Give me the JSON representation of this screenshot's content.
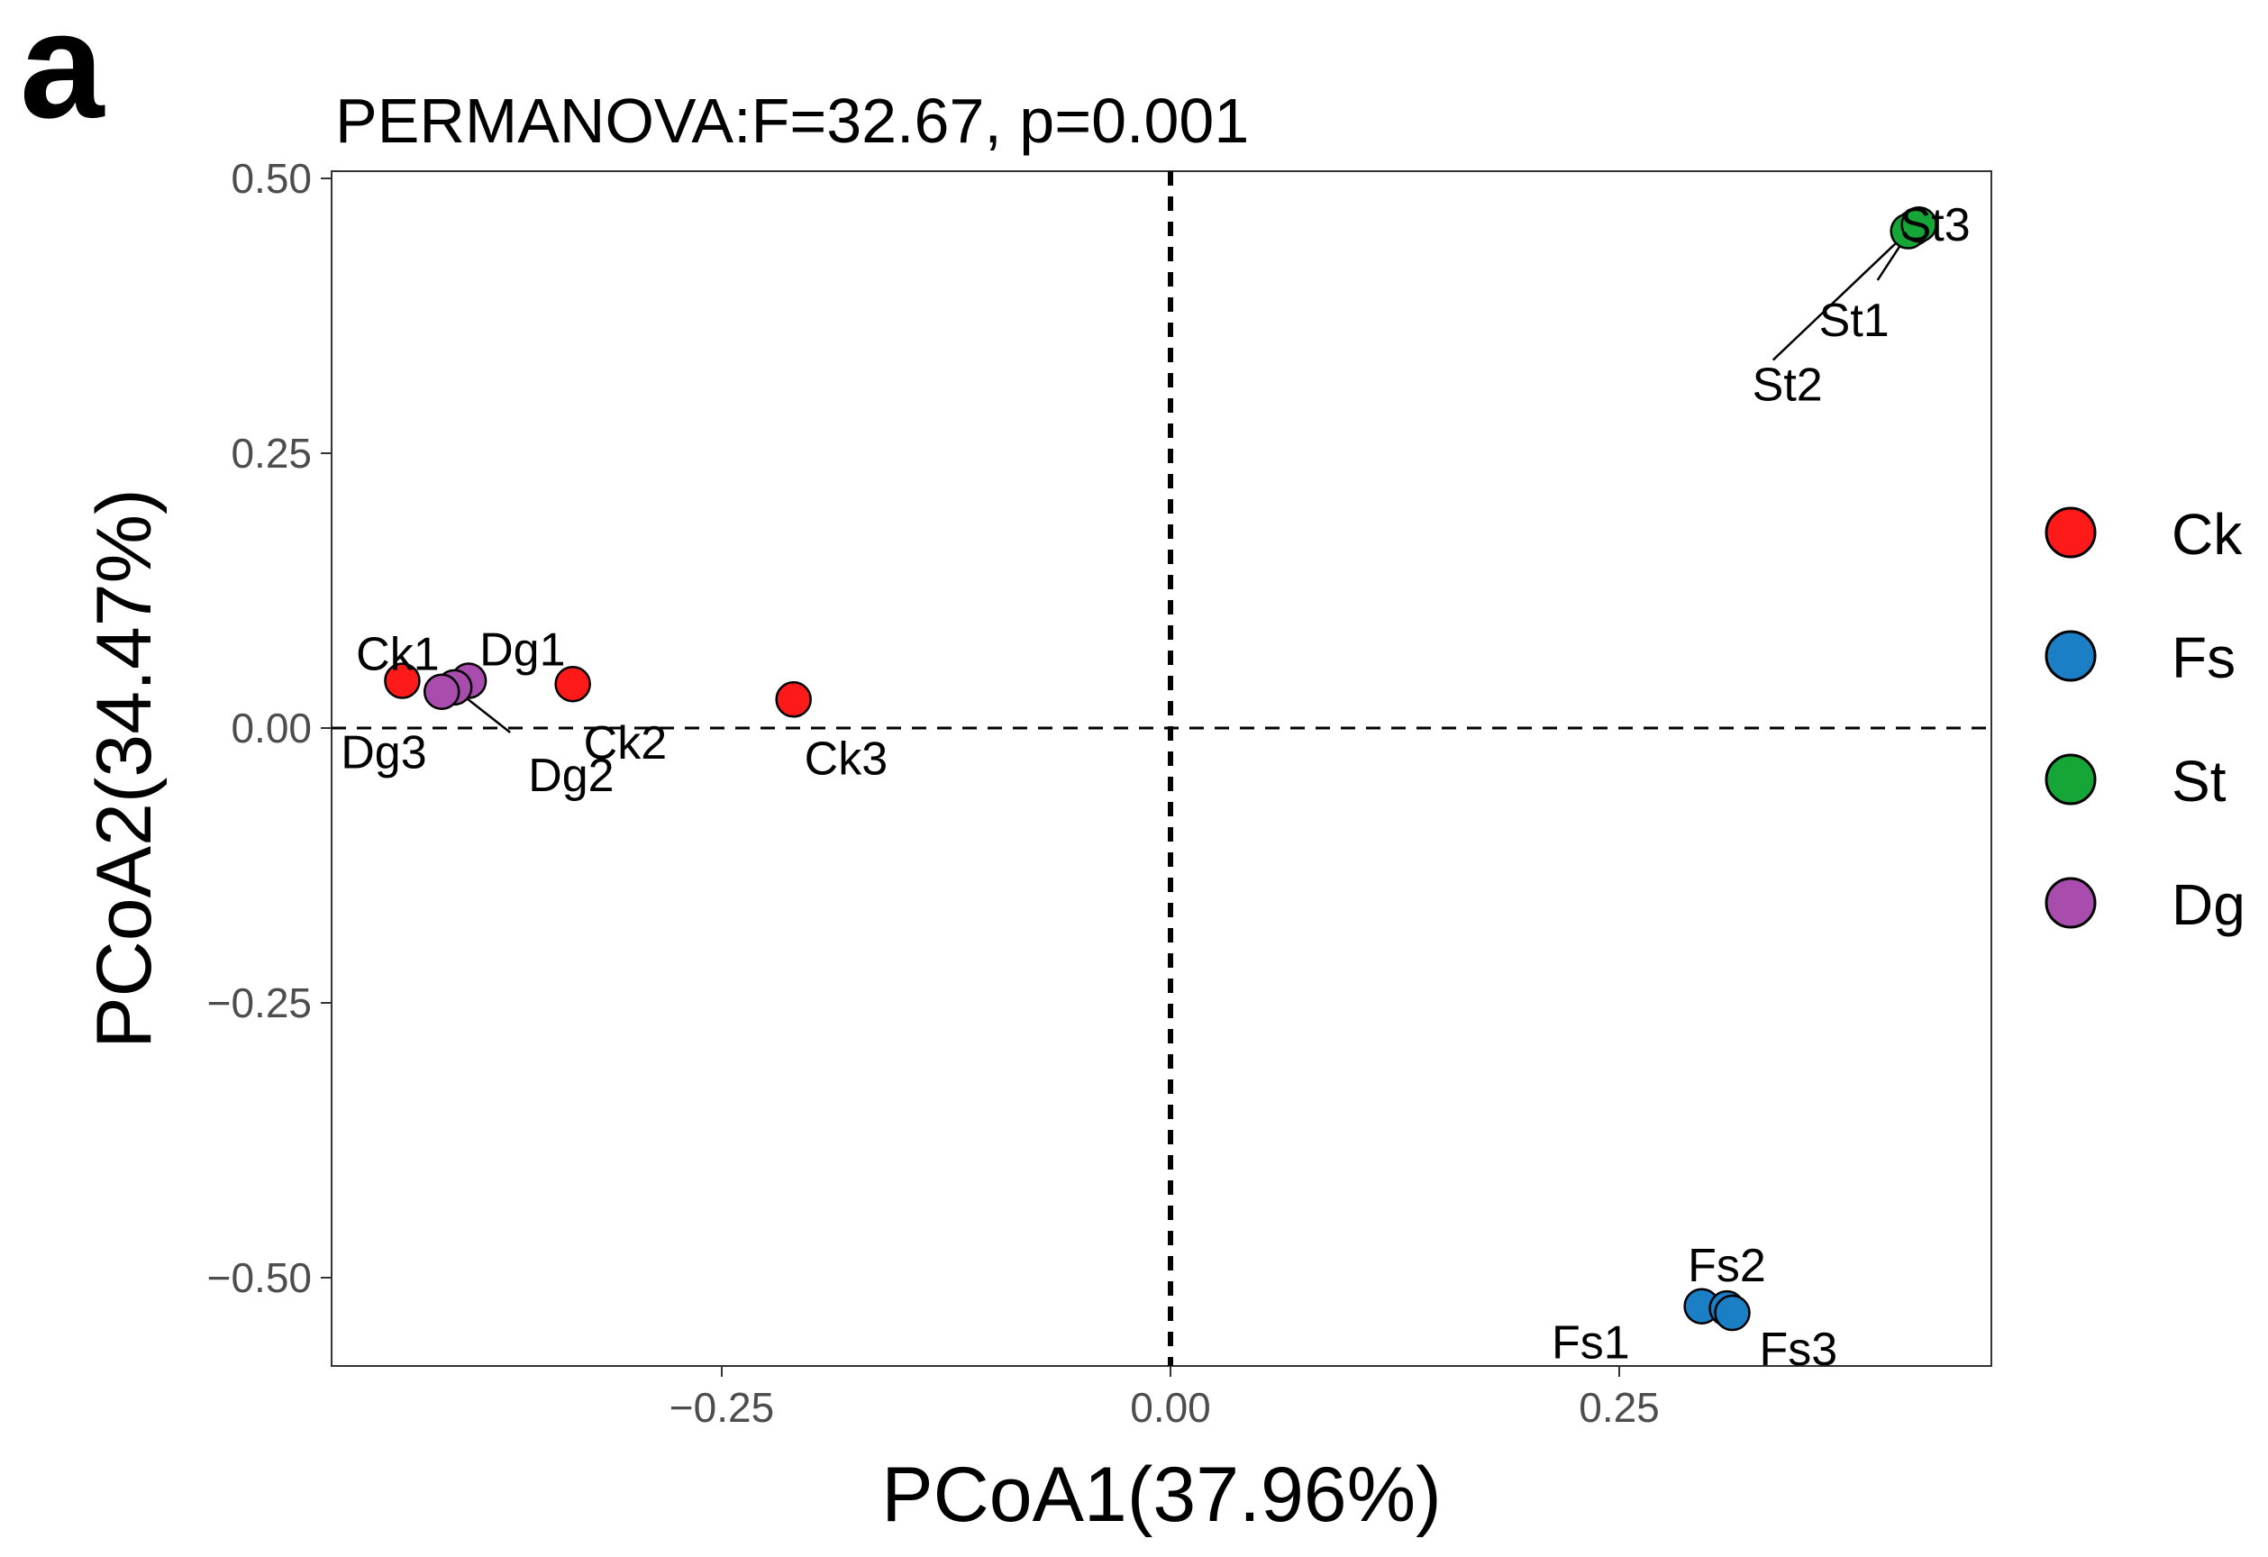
{
  "panel_letter": "a",
  "chart_data": {
    "type": "scatter",
    "title": "PERMANOVA:F=32.67, p=0.001",
    "xlabel": "PCoA1(37.96%)",
    "ylabel": "PCoA2(34.47%)",
    "xlim": [
      -0.47,
      0.46
    ],
    "ylim": [
      -0.58,
      0.51
    ],
    "x_ticks": [
      {
        "value": -0.25,
        "label": "−0.25"
      },
      {
        "value": 0.0,
        "label": "0.00"
      },
      {
        "value": 0.25,
        "label": "0.25"
      }
    ],
    "y_ticks": [
      {
        "value": 0.5,
        "label": "0.50"
      },
      {
        "value": 0.25,
        "label": "0.25"
      },
      {
        "value": 0.0,
        "label": "0.00"
      },
      {
        "value": -0.25,
        "label": "−0.25"
      },
      {
        "value": -0.5,
        "label": "−0.50"
      }
    ],
    "reference_lines": {
      "x": 0.0,
      "y": 0.0
    },
    "grid": false,
    "legend_position": "right",
    "groups": [
      {
        "name": "Ck",
        "color": "#ff1a1a"
      },
      {
        "name": "Fs",
        "color": "#1a7fc4"
      },
      {
        "name": "St",
        "color": "#16a637"
      },
      {
        "name": "Dg",
        "color": "#a84dad"
      }
    ],
    "points": [
      {
        "label": "Ck1",
        "group": "Ck",
        "x": -0.428,
        "y": 0.043
      },
      {
        "label": "Ck2",
        "group": "Ck",
        "x": -0.333,
        "y": 0.04
      },
      {
        "label": "Ck3",
        "group": "Ck",
        "x": -0.21,
        "y": 0.026
      },
      {
        "label": "Dg1",
        "group": "Dg",
        "x": -0.391,
        "y": 0.043
      },
      {
        "label": "Dg2",
        "group": "Dg",
        "x": -0.399,
        "y": 0.037
      },
      {
        "label": "Dg3",
        "group": "Dg",
        "x": -0.406,
        "y": 0.033
      },
      {
        "label": "Fs1",
        "group": "Fs",
        "x": 0.296,
        "y": -0.526
      },
      {
        "label": "Fs2",
        "group": "Fs",
        "x": 0.31,
        "y": -0.528
      },
      {
        "label": "Fs3",
        "group": "Fs",
        "x": 0.313,
        "y": -0.532
      },
      {
        "label": "St1",
        "group": "St",
        "x": 0.414,
        "y": 0.455
      },
      {
        "label": "St2",
        "group": "St",
        "x": 0.411,
        "y": 0.452
      },
      {
        "label": "St3",
        "group": "St",
        "x": 0.417,
        "y": 0.458
      }
    ]
  }
}
